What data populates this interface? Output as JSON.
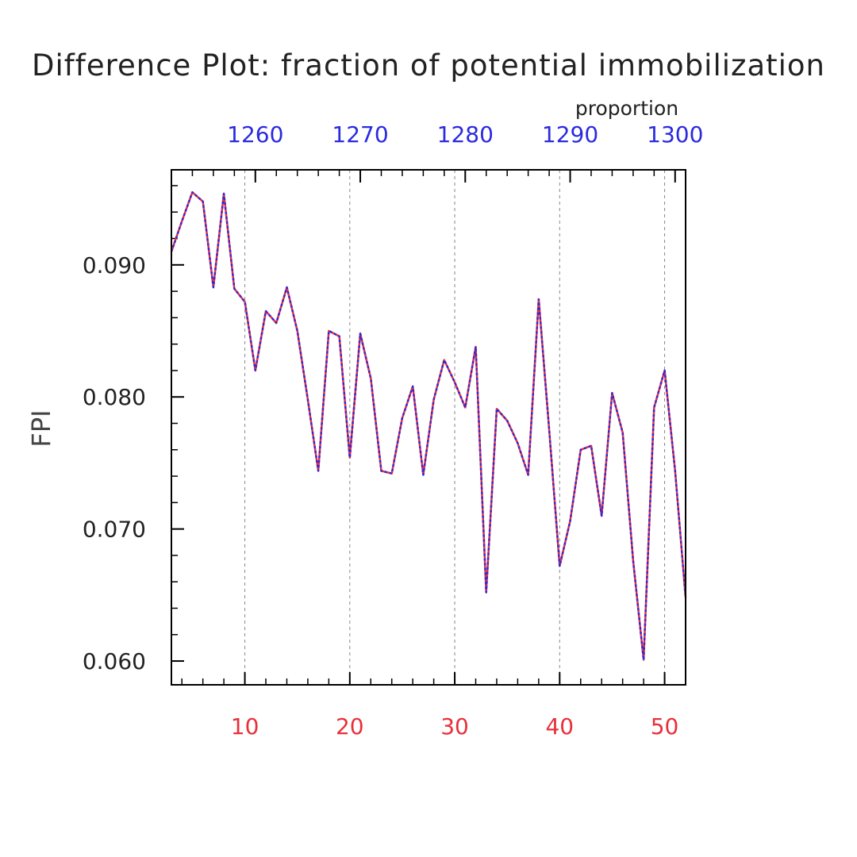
{
  "chart_data": {
    "type": "line",
    "title": "Difference Plot: fraction of potential immobilization",
    "units_label": "proportion",
    "ylabel": "FPI",
    "xlim": [
      3,
      52
    ],
    "ylim": [
      0.0582,
      0.0972
    ],
    "y_ticks": [
      "0.060",
      "0.070",
      "0.080",
      "0.090"
    ],
    "y_tick_values": [
      0.06,
      0.07,
      0.08,
      0.09
    ],
    "x_bottom_ticks": [
      "10",
      "20",
      "30",
      "40",
      "50"
    ],
    "x_bottom_values": [
      10,
      20,
      30,
      40,
      50
    ],
    "x_top_ticks": [
      "1260",
      "1270",
      "1280",
      "1290",
      "1300"
    ],
    "x_top_values_on_bottom_scale": [
      11,
      21,
      31,
      41,
      51
    ],
    "grid_x": [
      10,
      20,
      30,
      40,
      50
    ],
    "colors": {
      "bottom_axis": "#e8303a",
      "top_axis": "#2a2ae0",
      "series_a": "#e8303a",
      "series_b": "#2a2ae0",
      "grid": "#888888"
    },
    "x": [
      3,
      4,
      5,
      6,
      7,
      8,
      9,
      10,
      11,
      12,
      13,
      14,
      15,
      16,
      17,
      18,
      19,
      20,
      21,
      22,
      23,
      24,
      25,
      26,
      27,
      28,
      29,
      30,
      31,
      32,
      33,
      34,
      35,
      36,
      37,
      38,
      39,
      40,
      41,
      42,
      43,
      44,
      45,
      46,
      47,
      48,
      49,
      50,
      51,
      52
    ],
    "series": [
      {
        "values": [
          0.091,
          0.0933,
          0.0955,
          0.0948,
          0.0883,
          0.0954,
          0.0882,
          0.0872,
          0.082,
          0.0865,
          0.0856,
          0.0883,
          0.085,
          0.0798,
          0.0744,
          0.085,
          0.0846,
          0.0754,
          0.0848,
          0.0814,
          0.0744,
          0.0742,
          0.0784,
          0.0808,
          0.0741,
          0.0798,
          0.0828,
          0.0811,
          0.0792,
          0.0838,
          0.0652,
          0.0791,
          0.0782,
          0.0765,
          0.0741,
          0.0874,
          0.0775,
          0.0672,
          0.0706,
          0.076,
          0.0763,
          0.071,
          0.0803,
          0.0773,
          0.0676,
          0.0601,
          0.0792,
          0.082,
          0.0744,
          0.0648
        ]
      },
      {
        "values": [
          0.091,
          0.0933,
          0.0955,
          0.0948,
          0.0883,
          0.0954,
          0.0882,
          0.0872,
          0.082,
          0.0865,
          0.0856,
          0.0883,
          0.085,
          0.0798,
          0.0744,
          0.085,
          0.0846,
          0.0754,
          0.0848,
          0.0814,
          0.0744,
          0.0742,
          0.0784,
          0.0808,
          0.0741,
          0.0798,
          0.0828,
          0.0811,
          0.0792,
          0.0838,
          0.0652,
          0.0791,
          0.0782,
          0.0765,
          0.0741,
          0.0874,
          0.0775,
          0.0672,
          0.0706,
          0.076,
          0.0763,
          0.071,
          0.0803,
          0.0773,
          0.0676,
          0.0601,
          0.0792,
          0.082,
          0.0744,
          0.0648
        ]
      }
    ]
  }
}
